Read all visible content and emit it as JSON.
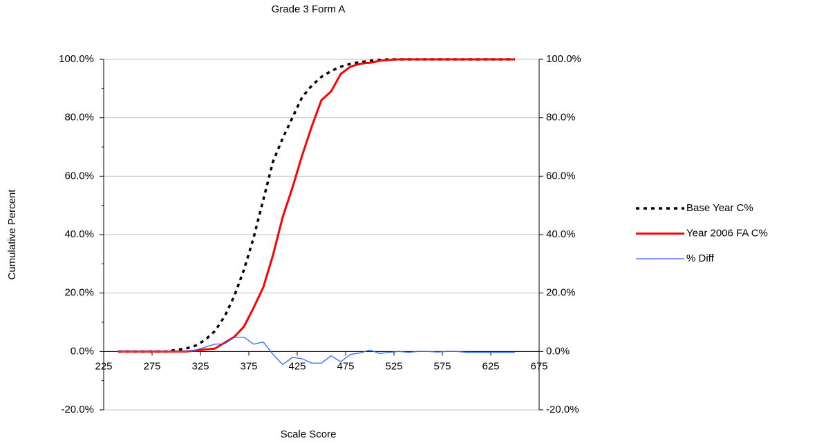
{
  "chart_data": {
    "type": "line",
    "title": "Grade 3 Form A",
    "xlabel": "Scale Score",
    "ylabel": "Cumulative Percent",
    "x": [
      240,
      250,
      260,
      270,
      280,
      290,
      300,
      310,
      320,
      330,
      340,
      350,
      360,
      370,
      380,
      390,
      400,
      410,
      420,
      430,
      440,
      450,
      460,
      470,
      480,
      490,
      500,
      510,
      520,
      530,
      540,
      550,
      560,
      570,
      580,
      590,
      600,
      610,
      620,
      630,
      640,
      650
    ],
    "series": [
      {
        "name": "Base Year C%",
        "color": "#000000",
        "style": "dotted",
        "values": [
          0,
          0,
          0,
          0,
          0,
          0,
          0.5,
          1,
          2,
          4,
          7,
          12,
          19,
          28,
          39,
          52,
          65,
          73,
          80,
          87,
          91,
          94,
          96,
          97.5,
          98.5,
          99,
          99.5,
          99.8,
          100,
          100,
          100,
          100,
          100,
          100,
          100,
          100,
          100,
          100,
          100,
          100,
          100,
          100
        ]
      },
      {
        "name": "Year 2006 FA C%",
        "color": "#ff0000",
        "style": "solid",
        "values": [
          0,
          0,
          0,
          0,
          0,
          0,
          0,
          0,
          0.3,
          0.7,
          1,
          3,
          5,
          8.5,
          15,
          22,
          33,
          46,
          56,
          67,
          77,
          86,
          89,
          95,
          97.5,
          98.5,
          98.8,
          99.5,
          99.8,
          100,
          100,
          100,
          100,
          100,
          100,
          100,
          100,
          100,
          100,
          100,
          100,
          100
        ]
      },
      {
        "name": "% Diff",
        "color": "#3366ff",
        "style": "thin",
        "axis": "y2",
        "values": [
          0,
          0,
          0,
          0,
          0,
          0,
          0,
          0,
          0.5,
          1.5,
          2.5,
          2.6,
          4.8,
          4.9,
          2.5,
          3.2,
          -1,
          -4.5,
          -2,
          -2.5,
          -4,
          -4,
          -1.5,
          -3.5,
          -1,
          -0.5,
          0.5,
          -0.7,
          -0.3,
          0,
          -0.3,
          0,
          0,
          -0.2,
          0,
          0,
          -0.3,
          -0.3,
          -0.3,
          -0.3,
          -0.3,
          -0.3
        ]
      }
    ],
    "xlim": [
      225,
      675
    ],
    "xticks": [
      225,
      275,
      325,
      375,
      425,
      475,
      525,
      575,
      625,
      675
    ],
    "ylim": [
      -20,
      100
    ],
    "yticks": [
      {
        "value": -20,
        "label": "-20.0%"
      },
      {
        "value": 0,
        "label": "0.0%"
      },
      {
        "value": 20,
        "label": "20.0%"
      },
      {
        "value": 40,
        "label": "40.0%"
      },
      {
        "value": 60,
        "label": "60.0%"
      },
      {
        "value": 80,
        "label": "80.0%"
      },
      {
        "value": 100,
        "label": "100.0%"
      }
    ],
    "y2lim": [
      -20,
      100
    ],
    "y2ticks": [
      {
        "value": -20,
        "label": "-20.0%"
      },
      {
        "value": 0,
        "label": "0.0%"
      },
      {
        "value": 20,
        "label": "20.0%"
      },
      {
        "value": 40,
        "label": "40.0%"
      },
      {
        "value": 60,
        "label": "60.0%"
      },
      {
        "value": 80,
        "label": "80.0%"
      },
      {
        "value": 100,
        "label": "100.0%"
      }
    ],
    "grid": true,
    "legend": "right"
  }
}
